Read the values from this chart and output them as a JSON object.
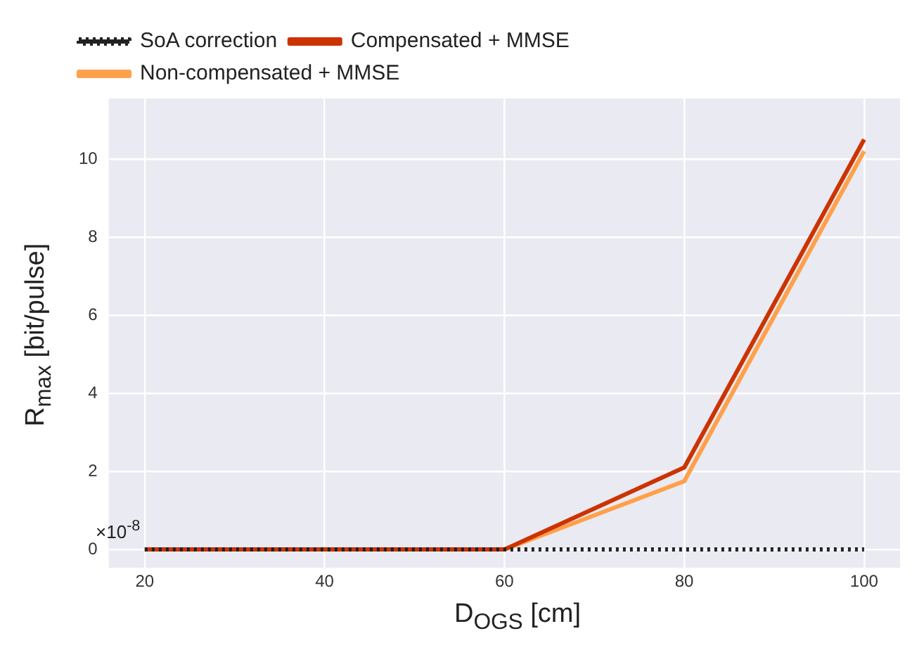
{
  "chart_data": {
    "type": "line",
    "xlabel": "D$_{OGS}$ [cm]",
    "ylabel": "R$_{max}$ [bit/pulse]",
    "annotations": [
      "×10$^{-8}$"
    ],
    "x": [
      20,
      40,
      60,
      80,
      100
    ],
    "series": [
      {
        "name": "SoA correction",
        "color": "#222222",
        "values": [
          0,
          0,
          0,
          0,
          0
        ],
        "line_style": "dotted"
      },
      {
        "name": "Compensated + MMSE",
        "color": "#cc3300",
        "values": [
          0,
          0,
          0,
          2.1,
          10.5
        ],
        "line_style": "solid"
      },
      {
        "name": "Non-compensated + MMSE",
        "color": "#ffa04a",
        "values": [
          0,
          0,
          0,
          1.75,
          10.2
        ],
        "line_style": "solid"
      }
    ],
    "xlim": [
      16,
      104
    ],
    "xticks": [
      20,
      40,
      60,
      80,
      100
    ],
    "ylim": [
      -0.47,
      11.55
    ],
    "yticks": [
      0,
      2,
      4,
      6,
      8,
      10
    ],
    "grid": true,
    "legend": "top left",
    "marker": "none"
  }
}
